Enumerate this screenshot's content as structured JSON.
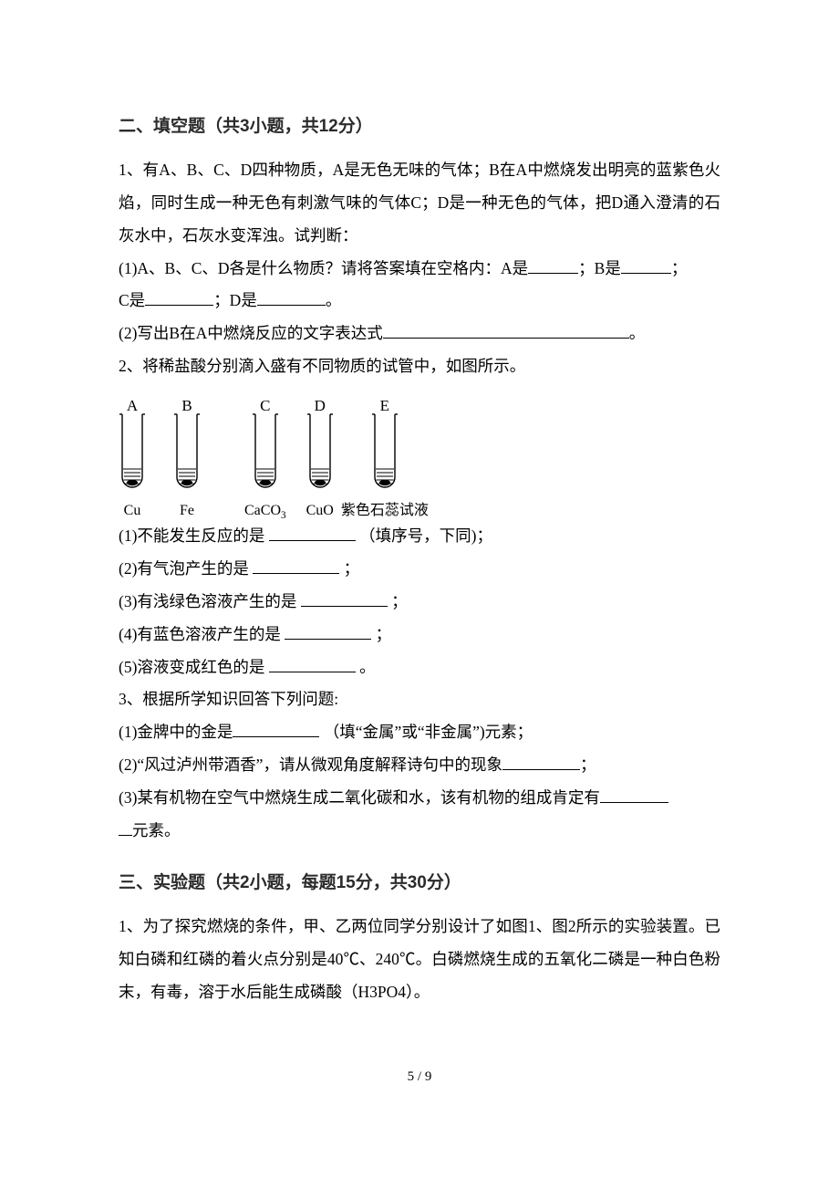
{
  "section2_title": "二、填空题（共3小题，共12分）",
  "q1": {
    "intro": "1、有A、B、C、D四种物质，A是无色无味的气体；B在A中燃烧发出明亮的蓝紫色火焰，同时生成一种无色有刺激气味的气体C；D是一种无色的气体，把D通入澄清的石灰水中，石灰水变浑浊。试判断：",
    "p1_a": "(1)A、B、C、D各是什么物质？请将答案填在空格内：A是",
    "p1_bsuffix": "；B是",
    "p1_csuffix": "；",
    "p1_c": "C是",
    "p1_dsuffix": "；D是",
    "p1_end": "。",
    "p2": "(2)写出B在A中燃烧反应的文字表达式",
    "p2_end": "。"
  },
  "q2": {
    "intro": "2、将稀盐酸分别滴入盛有不同物质的试管中，如图所示。",
    "tubes": [
      {
        "top": "A",
        "bot": "Cu",
        "leftpad": 0,
        "rightpad": 30
      },
      {
        "top": "B",
        "bot": "Fe",
        "leftpad": 0,
        "rightpad": 48
      },
      {
        "top": "C",
        "bot": "CaCO₃",
        "leftpad": 0,
        "rightpad": 22
      },
      {
        "top": "D",
        "bot": "CuO",
        "leftpad": 0,
        "rightpad": 8
      },
      {
        "top": "E",
        "bot": "紫色石蕊试液",
        "leftpad": 0,
        "rightpad": 0
      }
    ],
    "l1a": "(1)不能发生反应的是 ",
    "l1b": " （填序号，下同)；",
    "l2a": "(2)有气泡产生的是 ",
    "l2b": " ；",
    "l3a": "(3)有浅绿色溶液产生的是 ",
    "l3b": " ；",
    "l4a": "(4)有蓝色溶液产生的是 ",
    "l4b": " ；",
    "l5a": "(5)溶液变成红色的是 ",
    "l5b": " 。"
  },
  "q3": {
    "intro": "3、根据所学知识回答下列问题:",
    "l1a": "(1)金牌中的金是",
    "l1b": " （填“金属”或“非金属”)元素；",
    "l2a": "(2)“风过泸州带酒香”，请从微观角度解释诗句中的现象",
    "l2b": "；",
    "l3a": "(3)某有机物在空气中燃烧生成二氧化碳和水，该有机物的组成肯定有",
    "l3b": "元素。"
  },
  "section3_title": "三、实验题（共2小题，每题15分，共30分）",
  "exp1": "1、为了探究燃烧的条件，甲、乙两位同学分别设计了如图1、图2所示的实验装置。已知白磷和红磷的着火点分别是40℃、240℃。白磷燃烧生成的五氧化二磷是一种白色粉末，有毒，溶于水后能生成磷酸（H3PO4）。",
  "page_num": "5 / 9",
  "style": {
    "blank_widths": {
      "short": 55,
      "med": 75,
      "long": 100,
      "xlong": 270
    },
    "tube": {
      "w": 22,
      "h": 82,
      "liquid_h": 20
    }
  }
}
